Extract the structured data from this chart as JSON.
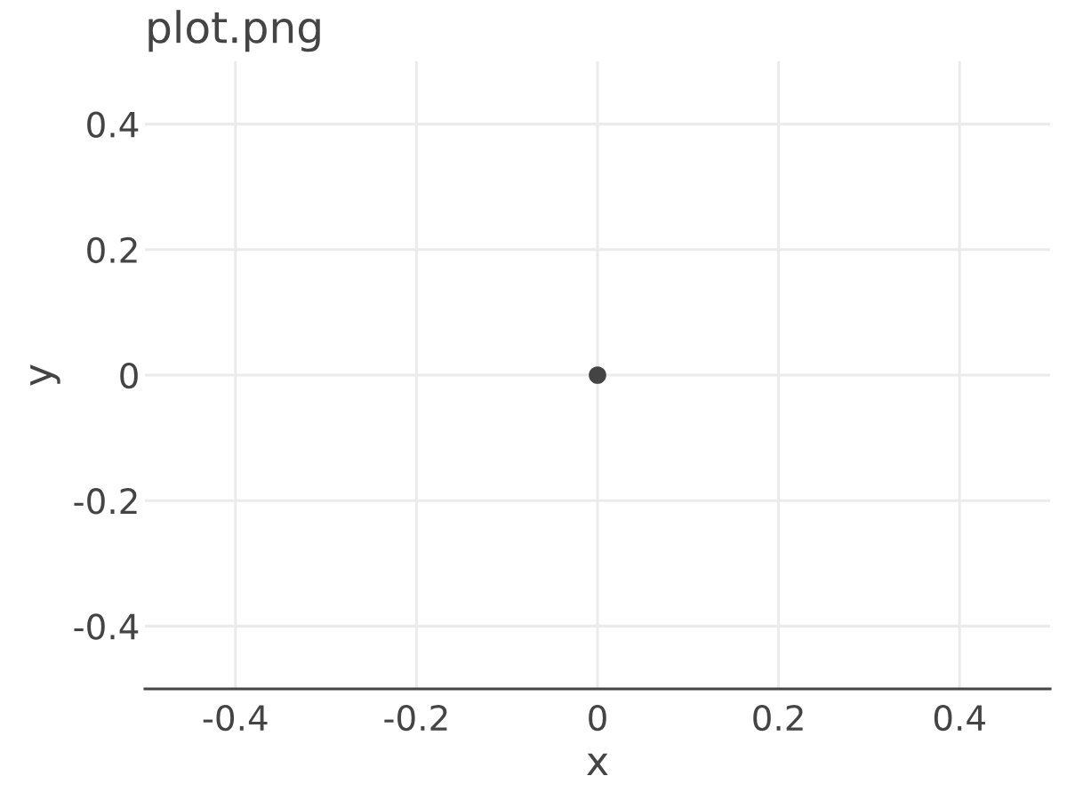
{
  "chart_data": {
    "type": "scatter",
    "title": "plot.png",
    "xlabel": "x",
    "ylabel": "y",
    "x": [
      0
    ],
    "values": [
      0
    ],
    "color": "#444444",
    "marker": "circle",
    "xlim": [
      -0.5,
      0.5
    ],
    "ylim": [
      -0.5,
      0.5
    ],
    "xticks": [
      -0.4,
      -0.2,
      0,
      0.2,
      0.4
    ],
    "yticks": [
      -0.4,
      -0.2,
      0,
      0.2,
      0.4
    ],
    "grid": true
  }
}
